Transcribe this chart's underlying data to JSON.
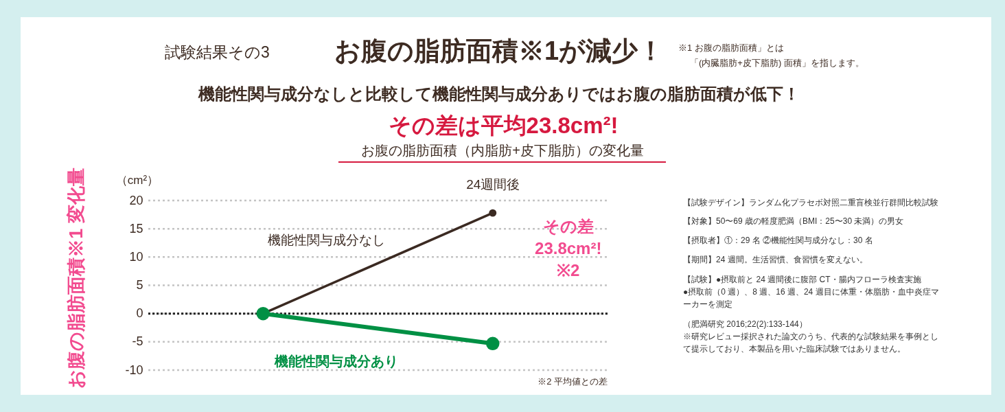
{
  "chart_data": {
    "type": "line",
    "title": "お腹の脂肪面積※1が減少！",
    "subtitle": "機能性関与成分なしと比較して機能性関与成分ありではお腹の脂肪面積が低下！",
    "ylabel": "お腹の脂肪面積※1 変化量",
    "categories": [
      null,
      "24週間後"
    ],
    "series": [
      {
        "name": "機能性関与成分なし",
        "color": "#3b2a22",
        "values": [
          0,
          17.8
        ]
      },
      {
        "name": "機能性関与成分あり",
        "color": "#009044",
        "values": [
          0,
          -5.3
        ]
      }
    ],
    "ylim": [
      -10,
      20
    ],
    "yticks": [
      -10,
      -5,
      0,
      5,
      10,
      15,
      20
    ],
    "grid": "y",
    "marker": "circle",
    "ref_lines": [
      {
        "axis": "y",
        "value": 0,
        "color": "#222222",
        "line_style": "dotted"
      }
    ],
    "annotations": [
      "試験結果その3",
      "※1 お腹の脂肪面積」とは",
      "「(内臓脂肪+皮下脂肪) 面積」を指します。",
      "その差は平均23.8cm²!",
      "お腹の脂肪面積（内脂肪+皮下脂肪）の変化量",
      "（cm²）",
      "その差\n23.8cm²!\n※2",
      "※2 平均値との差",
      "【試験デザイン】ランダム化プラセボ対照二重盲検並行群間比較試験",
      "【対象】50〜69 歳の軽度肥満（BMI：25〜30 未満）の男女",
      "【摂取者】①：29 名 ②機能性関与成分なし：30 名",
      "【期間】24 週間。生活習慣、食習慣を変えない。",
      "【試験】●摂取前と 24 週間後に腹部 CT・腸内フローラ検査実施\n●摂取前（0 週）、8 週、16 週、24 週目に体重・体脂肪・血中炎症マーカーを測定",
      "（肥満研究 2016;22(2):133-144）\n※研究レビュー採択された論文のうち、代表的な試験結果を事例として提示しており、本製品を用いた臨床試験ではありません。"
    ]
  }
}
